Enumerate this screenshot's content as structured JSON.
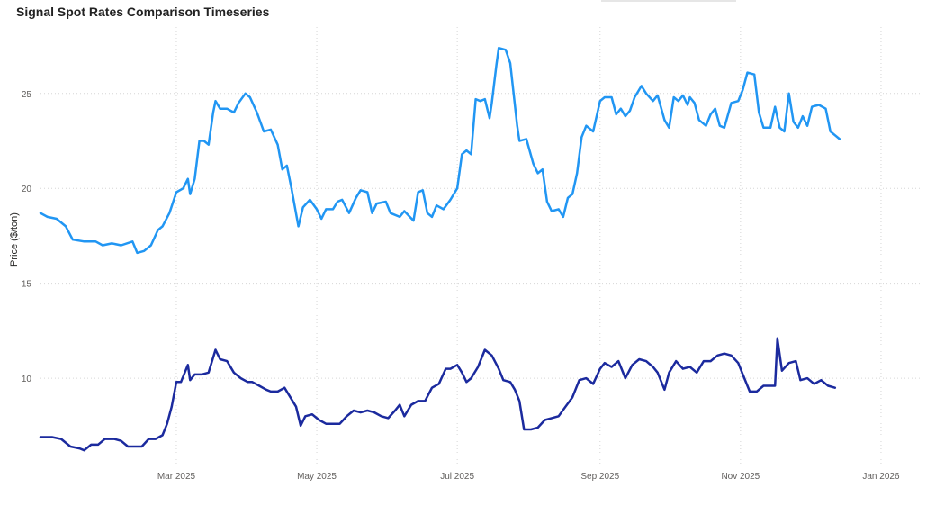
{
  "chart_data": {
    "type": "line",
    "title": "Signal Spot Rates Comparison Timeseries",
    "xlabel": "",
    "ylabel": "Price ($/ton)",
    "x_range": [
      "2025-01-01",
      "2026-01-19"
    ],
    "ylim": [
      5.5,
      28.5
    ],
    "yticks": [
      10,
      15,
      20,
      25
    ],
    "xticks": [
      {
        "date": "2025-03-01",
        "label": "Mar 2025"
      },
      {
        "date": "2025-05-01",
        "label": "May 2025"
      },
      {
        "date": "2025-07-01",
        "label": "Jul 2025"
      },
      {
        "date": "2025-09-01",
        "label": "Sep 2025"
      },
      {
        "date": "2025-11-01",
        "label": "Nov 2025"
      },
      {
        "date": "2026-01-01",
        "label": "Jan 2026"
      }
    ],
    "grid": true,
    "legend": "none",
    "series": [
      {
        "color": "#2196f3",
        "points": [
          [
            "2025-01-01",
            18.7
          ],
          [
            "2025-01-04",
            18.5
          ],
          [
            "2025-01-08",
            18.4
          ],
          [
            "2025-01-12",
            18.0
          ],
          [
            "2025-01-15",
            17.3
          ],
          [
            "2025-01-20",
            17.2
          ],
          [
            "2025-01-25",
            17.2
          ],
          [
            "2025-01-28",
            17.0
          ],
          [
            "2025-02-01",
            17.1
          ],
          [
            "2025-02-05",
            17.0
          ],
          [
            "2025-02-10",
            17.2
          ],
          [
            "2025-02-12",
            16.6
          ],
          [
            "2025-02-15",
            16.7
          ],
          [
            "2025-02-18",
            17.0
          ],
          [
            "2025-02-21",
            17.8
          ],
          [
            "2025-02-23",
            18.0
          ],
          [
            "2025-02-26",
            18.7
          ],
          [
            "2025-03-01",
            19.8
          ],
          [
            "2025-03-04",
            20.0
          ],
          [
            "2025-03-06",
            20.5
          ],
          [
            "2025-03-07",
            19.7
          ],
          [
            "2025-03-09",
            20.5
          ],
          [
            "2025-03-11",
            22.5
          ],
          [
            "2025-03-13",
            22.5
          ],
          [
            "2025-03-15",
            22.3
          ],
          [
            "2025-03-17",
            24.0
          ],
          [
            "2025-03-18",
            24.6
          ],
          [
            "2025-03-20",
            24.2
          ],
          [
            "2025-03-23",
            24.2
          ],
          [
            "2025-03-26",
            24.0
          ],
          [
            "2025-03-28",
            24.5
          ],
          [
            "2025-03-31",
            25.0
          ],
          [
            "2025-04-02",
            24.8
          ],
          [
            "2025-04-05",
            24.0
          ],
          [
            "2025-04-08",
            23.0
          ],
          [
            "2025-04-11",
            23.1
          ],
          [
            "2025-04-14",
            22.3
          ],
          [
            "2025-04-16",
            21.0
          ],
          [
            "2025-04-18",
            21.2
          ],
          [
            "2025-04-20",
            20.0
          ],
          [
            "2025-04-23",
            18.0
          ],
          [
            "2025-04-25",
            19.0
          ],
          [
            "2025-04-28",
            19.4
          ],
          [
            "2025-05-01",
            18.9
          ],
          [
            "2025-05-03",
            18.4
          ],
          [
            "2025-05-05",
            18.9
          ],
          [
            "2025-05-08",
            18.9
          ],
          [
            "2025-05-10",
            19.3
          ],
          [
            "2025-05-12",
            19.4
          ],
          [
            "2025-05-15",
            18.7
          ],
          [
            "2025-05-18",
            19.5
          ],
          [
            "2025-05-20",
            19.9
          ],
          [
            "2025-05-23",
            19.8
          ],
          [
            "2025-05-25",
            18.7
          ],
          [
            "2025-05-27",
            19.2
          ],
          [
            "2025-05-31",
            19.3
          ],
          [
            "2025-06-02",
            18.7
          ],
          [
            "2025-06-06",
            18.5
          ],
          [
            "2025-06-08",
            18.8
          ],
          [
            "2025-06-12",
            18.3
          ],
          [
            "2025-06-14",
            19.8
          ],
          [
            "2025-06-16",
            19.9
          ],
          [
            "2025-06-18",
            18.7
          ],
          [
            "2025-06-20",
            18.5
          ],
          [
            "2025-06-22",
            19.1
          ],
          [
            "2025-06-25",
            18.9
          ],
          [
            "2025-06-28",
            19.4
          ],
          [
            "2025-07-01",
            20.0
          ],
          [
            "2025-07-03",
            21.8
          ],
          [
            "2025-07-05",
            22.0
          ],
          [
            "2025-07-07",
            21.8
          ],
          [
            "2025-07-09",
            24.7
          ],
          [
            "2025-07-11",
            24.6
          ],
          [
            "2025-07-13",
            24.7
          ],
          [
            "2025-07-15",
            23.7
          ],
          [
            "2025-07-16",
            24.5
          ],
          [
            "2025-07-18",
            26.5
          ],
          [
            "2025-07-19",
            27.4
          ],
          [
            "2025-07-22",
            27.3
          ],
          [
            "2025-07-24",
            26.6
          ],
          [
            "2025-07-27",
            23.3
          ],
          [
            "2025-07-28",
            22.5
          ],
          [
            "2025-07-31",
            22.6
          ],
          [
            "2025-08-03",
            21.3
          ],
          [
            "2025-08-05",
            20.8
          ],
          [
            "2025-08-07",
            21.0
          ],
          [
            "2025-08-09",
            19.3
          ],
          [
            "2025-08-11",
            18.8
          ],
          [
            "2025-08-14",
            18.9
          ],
          [
            "2025-08-16",
            18.5
          ],
          [
            "2025-08-18",
            19.5
          ],
          [
            "2025-08-20",
            19.7
          ],
          [
            "2025-08-22",
            20.8
          ],
          [
            "2025-08-24",
            22.7
          ],
          [
            "2025-08-26",
            23.3
          ],
          [
            "2025-08-29",
            23.0
          ],
          [
            "2025-09-01",
            24.6
          ],
          [
            "2025-09-03",
            24.8
          ],
          [
            "2025-09-06",
            24.8
          ],
          [
            "2025-09-08",
            23.9
          ],
          [
            "2025-09-10",
            24.2
          ],
          [
            "2025-09-12",
            23.8
          ],
          [
            "2025-09-14",
            24.1
          ],
          [
            "2025-09-16",
            24.8
          ],
          [
            "2025-09-19",
            25.4
          ],
          [
            "2025-09-21",
            25.0
          ],
          [
            "2025-09-24",
            24.6
          ],
          [
            "2025-09-26",
            24.9
          ],
          [
            "2025-09-29",
            23.6
          ],
          [
            "2025-10-01",
            23.2
          ],
          [
            "2025-10-03",
            24.8
          ],
          [
            "2025-10-05",
            24.6
          ],
          [
            "2025-10-07",
            24.9
          ],
          [
            "2025-10-09",
            24.4
          ],
          [
            "2025-10-10",
            24.8
          ],
          [
            "2025-10-12",
            24.5
          ],
          [
            "2025-10-14",
            23.6
          ],
          [
            "2025-10-17",
            23.3
          ],
          [
            "2025-10-19",
            23.9
          ],
          [
            "2025-10-21",
            24.2
          ],
          [
            "2025-10-23",
            23.3
          ],
          [
            "2025-10-25",
            23.2
          ],
          [
            "2025-10-28",
            24.5
          ],
          [
            "2025-10-31",
            24.6
          ],
          [
            "2025-11-02",
            25.2
          ],
          [
            "2025-11-04",
            26.1
          ],
          [
            "2025-11-07",
            26.0
          ],
          [
            "2025-11-09",
            24.0
          ],
          [
            "2025-11-11",
            23.2
          ],
          [
            "2025-11-14",
            23.2
          ],
          [
            "2025-11-16",
            24.3
          ],
          [
            "2025-11-18",
            23.2
          ],
          [
            "2025-11-20",
            23.0
          ],
          [
            "2025-11-22",
            25.0
          ],
          [
            "2025-11-24",
            23.5
          ],
          [
            "2025-11-26",
            23.2
          ],
          [
            "2025-11-28",
            23.8
          ],
          [
            "2025-11-30",
            23.3
          ],
          [
            "2025-12-02",
            24.3
          ],
          [
            "2025-12-05",
            24.4
          ],
          [
            "2025-12-08",
            24.2
          ],
          [
            "2025-12-10",
            23.0
          ],
          [
            "2025-12-12",
            22.8
          ],
          [
            "2025-12-14",
            22.6
          ]
        ]
      },
      {
        "color": "#1b2a9e",
        "points": [
          [
            "2025-01-01",
            6.9
          ],
          [
            "2025-01-06",
            6.9
          ],
          [
            "2025-01-10",
            6.8
          ],
          [
            "2025-01-14",
            6.4
          ],
          [
            "2025-01-18",
            6.3
          ],
          [
            "2025-01-20",
            6.2
          ],
          [
            "2025-01-23",
            6.5
          ],
          [
            "2025-01-26",
            6.5
          ],
          [
            "2025-01-29",
            6.8
          ],
          [
            "2025-02-02",
            6.8
          ],
          [
            "2025-02-05",
            6.7
          ],
          [
            "2025-02-08",
            6.4
          ],
          [
            "2025-02-11",
            6.4
          ],
          [
            "2025-02-14",
            6.4
          ],
          [
            "2025-02-17",
            6.8
          ],
          [
            "2025-02-20",
            6.8
          ],
          [
            "2025-02-23",
            7.0
          ],
          [
            "2025-02-25",
            7.6
          ],
          [
            "2025-02-27",
            8.5
          ],
          [
            "2025-03-01",
            9.8
          ],
          [
            "2025-03-03",
            9.8
          ],
          [
            "2025-03-06",
            10.7
          ],
          [
            "2025-03-07",
            9.9
          ],
          [
            "2025-03-09",
            10.2
          ],
          [
            "2025-03-12",
            10.2
          ],
          [
            "2025-03-15",
            10.3
          ],
          [
            "2025-03-18",
            11.5
          ],
          [
            "2025-03-20",
            11.0
          ],
          [
            "2025-03-23",
            10.9
          ],
          [
            "2025-03-26",
            10.3
          ],
          [
            "2025-03-29",
            10.0
          ],
          [
            "2025-04-01",
            9.8
          ],
          [
            "2025-04-03",
            9.8
          ],
          [
            "2025-04-06",
            9.6
          ],
          [
            "2025-04-09",
            9.4
          ],
          [
            "2025-04-11",
            9.3
          ],
          [
            "2025-04-14",
            9.3
          ],
          [
            "2025-04-17",
            9.5
          ],
          [
            "2025-04-20",
            8.9
          ],
          [
            "2025-04-22",
            8.5
          ],
          [
            "2025-04-24",
            7.5
          ],
          [
            "2025-04-26",
            8.0
          ],
          [
            "2025-04-29",
            8.1
          ],
          [
            "2025-05-02",
            7.8
          ],
          [
            "2025-05-05",
            7.6
          ],
          [
            "2025-05-08",
            7.6
          ],
          [
            "2025-05-11",
            7.6
          ],
          [
            "2025-05-14",
            8.0
          ],
          [
            "2025-05-17",
            8.3
          ],
          [
            "2025-05-20",
            8.2
          ],
          [
            "2025-05-23",
            8.3
          ],
          [
            "2025-05-26",
            8.2
          ],
          [
            "2025-05-29",
            8.0
          ],
          [
            "2025-06-01",
            7.9
          ],
          [
            "2025-06-04",
            8.3
          ],
          [
            "2025-06-06",
            8.6
          ],
          [
            "2025-06-08",
            8.0
          ],
          [
            "2025-06-11",
            8.6
          ],
          [
            "2025-06-14",
            8.8
          ],
          [
            "2025-06-17",
            8.8
          ],
          [
            "2025-06-20",
            9.5
          ],
          [
            "2025-06-23",
            9.7
          ],
          [
            "2025-06-26",
            10.5
          ],
          [
            "2025-06-28",
            10.5
          ],
          [
            "2025-07-01",
            10.7
          ],
          [
            "2025-07-03",
            10.3
          ],
          [
            "2025-07-05",
            9.8
          ],
          [
            "2025-07-07",
            10.0
          ],
          [
            "2025-07-10",
            10.6
          ],
          [
            "2025-07-13",
            11.5
          ],
          [
            "2025-07-16",
            11.2
          ],
          [
            "2025-07-19",
            10.5
          ],
          [
            "2025-07-21",
            9.9
          ],
          [
            "2025-07-24",
            9.8
          ],
          [
            "2025-07-26",
            9.4
          ],
          [
            "2025-07-28",
            8.8
          ],
          [
            "2025-07-30",
            7.3
          ],
          [
            "2025-08-02",
            7.3
          ],
          [
            "2025-08-05",
            7.4
          ],
          [
            "2025-08-08",
            7.8
          ],
          [
            "2025-08-11",
            7.9
          ],
          [
            "2025-08-14",
            8.0
          ],
          [
            "2025-08-17",
            8.5
          ],
          [
            "2025-08-20",
            9.0
          ],
          [
            "2025-08-23",
            9.9
          ],
          [
            "2025-08-26",
            10.0
          ],
          [
            "2025-08-29",
            9.7
          ],
          [
            "2025-09-01",
            10.5
          ],
          [
            "2025-09-03",
            10.8
          ],
          [
            "2025-09-06",
            10.6
          ],
          [
            "2025-09-09",
            10.9
          ],
          [
            "2025-09-12",
            10.0
          ],
          [
            "2025-09-15",
            10.7
          ],
          [
            "2025-09-18",
            11.0
          ],
          [
            "2025-09-21",
            10.9
          ],
          [
            "2025-09-24",
            10.6
          ],
          [
            "2025-09-26",
            10.3
          ],
          [
            "2025-09-29",
            9.4
          ],
          [
            "2025-10-01",
            10.3
          ],
          [
            "2025-10-04",
            10.9
          ],
          [
            "2025-10-07",
            10.5
          ],
          [
            "2025-10-10",
            10.6
          ],
          [
            "2025-10-13",
            10.3
          ],
          [
            "2025-10-16",
            10.9
          ],
          [
            "2025-10-19",
            10.9
          ],
          [
            "2025-10-22",
            11.2
          ],
          [
            "2025-10-25",
            11.3
          ],
          [
            "2025-10-28",
            11.2
          ],
          [
            "2025-10-31",
            10.8
          ],
          [
            "2025-11-02",
            10.2
          ],
          [
            "2025-11-05",
            9.3
          ],
          [
            "2025-11-08",
            9.3
          ],
          [
            "2025-11-11",
            9.6
          ],
          [
            "2025-11-13",
            9.6
          ],
          [
            "2025-11-16",
            9.6
          ],
          [
            "2025-11-17",
            12.1
          ],
          [
            "2025-11-19",
            10.4
          ],
          [
            "2025-11-22",
            10.8
          ],
          [
            "2025-11-25",
            10.9
          ],
          [
            "2025-11-27",
            9.9
          ],
          [
            "2025-11-30",
            10.0
          ],
          [
            "2025-12-03",
            9.7
          ],
          [
            "2025-12-06",
            9.9
          ],
          [
            "2025-12-09",
            9.6
          ],
          [
            "2025-12-12",
            9.5
          ]
        ]
      }
    ]
  }
}
